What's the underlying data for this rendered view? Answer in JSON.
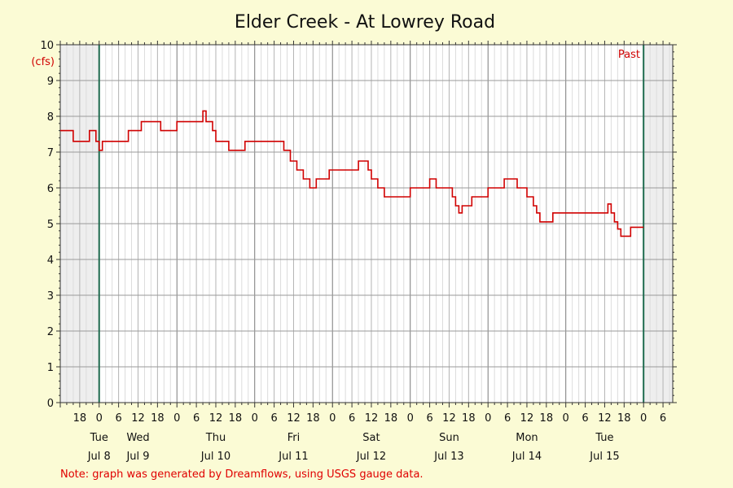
{
  "chart_data": {
    "type": "line",
    "title": "Elder Creek - At Lowrey Road",
    "ylabel": "(cfs)",
    "ylim": [
      0,
      10
    ],
    "yticks": [
      0,
      1,
      2,
      3,
      4,
      5,
      6,
      7,
      8,
      9,
      10
    ],
    "xlim": [
      "2025-07-08T12:00",
      "2025-07-16T09:00"
    ],
    "x_hour_ticks": [
      {
        "x": "2025-07-08T18:00",
        "label": "18"
      },
      {
        "x": "2025-07-09T00:00",
        "label": "0"
      },
      {
        "x": "2025-07-09T06:00",
        "label": "6"
      },
      {
        "x": "2025-07-09T12:00",
        "label": "12"
      },
      {
        "x": "2025-07-09T18:00",
        "label": "18"
      },
      {
        "x": "2025-07-10T00:00",
        "label": "0"
      },
      {
        "x": "2025-07-10T06:00",
        "label": "6"
      },
      {
        "x": "2025-07-10T12:00",
        "label": "12"
      },
      {
        "x": "2025-07-10T18:00",
        "label": "18"
      },
      {
        "x": "2025-07-11T00:00",
        "label": "0"
      },
      {
        "x": "2025-07-11T06:00",
        "label": "6"
      },
      {
        "x": "2025-07-11T12:00",
        "label": "12"
      },
      {
        "x": "2025-07-11T18:00",
        "label": "18"
      },
      {
        "x": "2025-07-12T00:00",
        "label": "0"
      },
      {
        "x": "2025-07-12T06:00",
        "label": "6"
      },
      {
        "x": "2025-07-12T12:00",
        "label": "12"
      },
      {
        "x": "2025-07-12T18:00",
        "label": "18"
      },
      {
        "x": "2025-07-13T00:00",
        "label": "0"
      },
      {
        "x": "2025-07-13T06:00",
        "label": "6"
      },
      {
        "x": "2025-07-13T12:00",
        "label": "12"
      },
      {
        "x": "2025-07-13T18:00",
        "label": "18"
      },
      {
        "x": "2025-07-14T00:00",
        "label": "0"
      },
      {
        "x": "2025-07-14T06:00",
        "label": "6"
      },
      {
        "x": "2025-07-14T12:00",
        "label": "12"
      },
      {
        "x": "2025-07-14T18:00",
        "label": "18"
      },
      {
        "x": "2025-07-15T00:00",
        "label": "0"
      },
      {
        "x": "2025-07-15T06:00",
        "label": "6"
      },
      {
        "x": "2025-07-15T12:00",
        "label": "12"
      },
      {
        "x": "2025-07-15T18:00",
        "label": "18"
      },
      {
        "x": "2025-07-16T00:00",
        "label": "0"
      },
      {
        "x": "2025-07-16T06:00",
        "label": "6"
      }
    ],
    "day_labels": [
      {
        "x": "2025-07-09T00:00",
        "day": "Tue",
        "date": "Jul 8"
      },
      {
        "x": "2025-07-09T12:00",
        "day": "Wed",
        "date": "Jul 9"
      },
      {
        "x": "2025-07-10T12:00",
        "day": "Thu",
        "date": "Jul 10"
      },
      {
        "x": "2025-07-11T12:00",
        "day": "Fri",
        "date": "Jul 11"
      },
      {
        "x": "2025-07-12T12:00",
        "day": "Sat",
        "date": "Jul 12"
      },
      {
        "x": "2025-07-13T12:00",
        "day": "Sun",
        "date": "Jul 13"
      },
      {
        "x": "2025-07-14T12:00",
        "day": "Mon",
        "date": "Jul 14"
      },
      {
        "x": "2025-07-15T12:00",
        "day": "Tue",
        "date": "Jul 15"
      }
    ],
    "data_start": "2025-07-09T00:00",
    "data_end": "2025-07-16T00:00",
    "past_label": "Past",
    "grid": true,
    "series": [
      {
        "color": "#d00000",
        "x": [
          "2025-07-08T12:00",
          "2025-07-08T16:00",
          "2025-07-08T16:00",
          "2025-07-08T21:00",
          "2025-07-08T21:00",
          "2025-07-08T23:00",
          "2025-07-08T23:00",
          "2025-07-09T00:00",
          "2025-07-09T00:00",
          "2025-07-09T01:00",
          "2025-07-09T01:00",
          "2025-07-09T09:00",
          "2025-07-09T09:00",
          "2025-07-09T13:00",
          "2025-07-09T13:00",
          "2025-07-09T19:00",
          "2025-07-09T19:00",
          "2025-07-09T24:00",
          "2025-07-10T00:00",
          "2025-07-10T03:00",
          "2025-07-10T03:00",
          "2025-07-10T08:00",
          "2025-07-10T08:00",
          "2025-07-10T09:00",
          "2025-07-10T09:00",
          "2025-07-10T11:00",
          "2025-07-10T11:00",
          "2025-07-10T12:00",
          "2025-07-10T12:00",
          "2025-07-10T16:00",
          "2025-07-10T16:00",
          "2025-07-10T21:00",
          "2025-07-10T21:00",
          "2025-07-11T04:00",
          "2025-07-11T04:00",
          "2025-07-11T09:00",
          "2025-07-11T09:00",
          "2025-07-11T11:00",
          "2025-07-11T11:00",
          "2025-07-11T13:00",
          "2025-07-11T13:00",
          "2025-07-11T15:00",
          "2025-07-11T15:00",
          "2025-07-11T17:00",
          "2025-07-11T17:00",
          "2025-07-11T19:00",
          "2025-07-11T19:00",
          "2025-07-11T23:00",
          "2025-07-11T23:00",
          "2025-07-12T04:00",
          "2025-07-12T04:00",
          "2025-07-12T08:00",
          "2025-07-12T08:00",
          "2025-07-12T11:00",
          "2025-07-12T11:00",
          "2025-07-12T12:00",
          "2025-07-12T12:00",
          "2025-07-12T14:00",
          "2025-07-12T14:00",
          "2025-07-12T16:00",
          "2025-07-12T16:00",
          "2025-07-13T00:00",
          "2025-07-13T00:00",
          "2025-07-13T06:00",
          "2025-07-13T06:00",
          "2025-07-13T08:00",
          "2025-07-13T08:00",
          "2025-07-13T13:00",
          "2025-07-13T13:00",
          "2025-07-13T14:00",
          "2025-07-13T14:00",
          "2025-07-13T15:00",
          "2025-07-13T15:00",
          "2025-07-13T16:00",
          "2025-07-13T16:00",
          "2025-07-13T19:00",
          "2025-07-13T19:00",
          "2025-07-13T24:00",
          "2025-07-14T00:00",
          "2025-07-14T05:00",
          "2025-07-14T05:00",
          "2025-07-14T09:00",
          "2025-07-14T09:00",
          "2025-07-14T12:00",
          "2025-07-14T12:00",
          "2025-07-14T14:00",
          "2025-07-14T14:00",
          "2025-07-14T15:00",
          "2025-07-14T15:00",
          "2025-07-14T16:00",
          "2025-07-14T16:00",
          "2025-07-14T20:00",
          "2025-07-14T20:00",
          "2025-07-15T06:00",
          "2025-07-15T06:00",
          "2025-07-15T13:00",
          "2025-07-15T13:00",
          "2025-07-15T14:00",
          "2025-07-15T14:00",
          "2025-07-15T15:00",
          "2025-07-15T15:00",
          "2025-07-15T16:00",
          "2025-07-15T16:00",
          "2025-07-15T17:00",
          "2025-07-15T17:00",
          "2025-07-15T20:00",
          "2025-07-15T20:00",
          "2025-07-16T00:00"
        ],
        "y": [
          7.6,
          7.6,
          7.3,
          7.3,
          7.6,
          7.6,
          7.3,
          7.3,
          7.05,
          7.05,
          7.3,
          7.3,
          7.6,
          7.6,
          7.85,
          7.85,
          7.6,
          7.6,
          7.85,
          7.85,
          7.85,
          7.85,
          8.15,
          8.15,
          7.85,
          7.85,
          7.6,
          7.6,
          7.3,
          7.3,
          7.05,
          7.05,
          7.3,
          7.3,
          7.3,
          7.3,
          7.05,
          7.05,
          6.75,
          6.75,
          6.5,
          6.5,
          6.25,
          6.25,
          6.0,
          6.0,
          6.25,
          6.25,
          6.5,
          6.5,
          6.5,
          6.5,
          6.75,
          6.75,
          6.5,
          6.5,
          6.25,
          6.25,
          6.0,
          6.0,
          5.75,
          5.75,
          6.0,
          6.0,
          6.25,
          6.25,
          6.0,
          6.0,
          5.75,
          5.75,
          5.5,
          5.5,
          5.3,
          5.3,
          5.5,
          5.5,
          5.75,
          5.75,
          6.0,
          6.0,
          6.25,
          6.25,
          6.0,
          6.0,
          5.75,
          5.75,
          5.5,
          5.5,
          5.3,
          5.3,
          5.05,
          5.05,
          5.3,
          5.3,
          5.3,
          5.3,
          5.55,
          5.55,
          5.3,
          5.3,
          5.05,
          5.05,
          4.85,
          4.85,
          4.65,
          4.65,
          4.9,
          4.9
        ]
      }
    ],
    "note": "Note: graph was generated by Dreamflows, using USGS gauge data."
  }
}
